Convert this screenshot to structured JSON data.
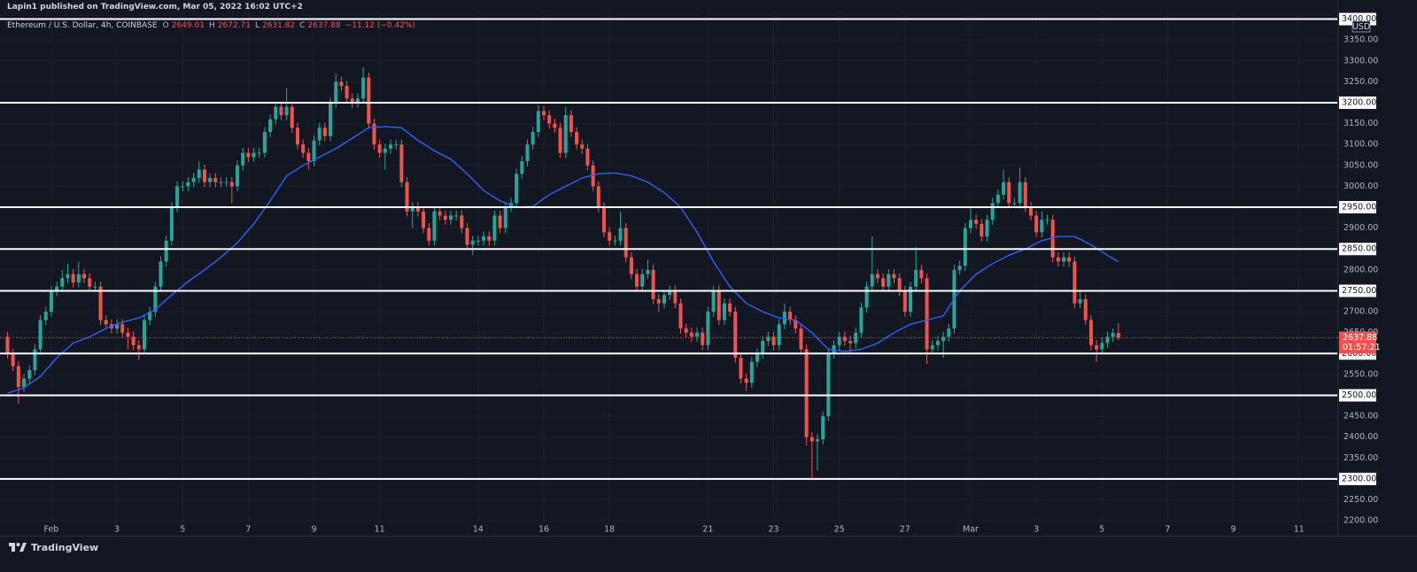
{
  "header": {
    "published": "Lapin1 published on TradingView.com, Mar 05, 2022 16:02 UTC+2"
  },
  "chart_data": {
    "type": "candlestick",
    "symbol": "Ethereum / U.S. Dollar, 4h, COINBASE",
    "ohlc_keys": [
      "O",
      "H",
      "L",
      "C"
    ],
    "change": "−11.12 (−0.42%)",
    "currency": "USD",
    "countdown": "01:57:21",
    "up_color": "#26a69a",
    "down_color": "#ef5350",
    "x": [
      -32,
      -28,
      -24,
      -20,
      -16,
      -12,
      -8,
      -4,
      0,
      4,
      8,
      12,
      16,
      20,
      24,
      28,
      32,
      36,
      40,
      44,
      48,
      52,
      56,
      60,
      64,
      68,
      72,
      76,
      80,
      84,
      88,
      92,
      96,
      100,
      104,
      108,
      112,
      116,
      120,
      124,
      128,
      132,
      136,
      140,
      144,
      148,
      152,
      156,
      160,
      164,
      168,
      172,
      176,
      180,
      184,
      188,
      192,
      196,
      200,
      204,
      208,
      212,
      216,
      220,
      224,
      228,
      232,
      236,
      240,
      244,
      248,
      252,
      256,
      260,
      264,
      268,
      272,
      276,
      280,
      284,
      288,
      292,
      296,
      300,
      304,
      308,
      312,
      316,
      320,
      324,
      328,
      332,
      336,
      340,
      344,
      348,
      352,
      356,
      360,
      364,
      368,
      372,
      376,
      380,
      384,
      388,
      392,
      396,
      400,
      404,
      408,
      412,
      416,
      420,
      424,
      428,
      432,
      436,
      440,
      444,
      448,
      452,
      456,
      460,
      464,
      468,
      472,
      476,
      480,
      484,
      488,
      492,
      496,
      500,
      504,
      508,
      512,
      516,
      520,
      524,
      528,
      532,
      536,
      540,
      544,
      548,
      552,
      556,
      560,
      564,
      568,
      572,
      576,
      580,
      584,
      588,
      592,
      596,
      600,
      604,
      608,
      612,
      616,
      620,
      624,
      628,
      632,
      636,
      640,
      644,
      648,
      652,
      656,
      660,
      664,
      668,
      672,
      676,
      680,
      684,
      688,
      692,
      696,
      700,
      704,
      708,
      712,
      716,
      720,
      724,
      728,
      732,
      736,
      740,
      744,
      748,
      752,
      756,
      760,
      764,
      768,
      772,
      776,
      780
    ],
    "open": [
      2640,
      2600,
      2570,
      2520,
      2540,
      2560,
      2610,
      2680,
      2700,
      2750,
      2760,
      2780,
      2790,
      2770,
      2790,
      2780,
      2760,
      2760,
      2680,
      2670,
      2660,
      2670,
      2650,
      2640,
      2620,
      2610,
      2680,
      2700,
      2760,
      2820,
      2870,
      2950,
      3000,
      3000,
      3010,
      3020,
      3040,
      3010,
      3020,
      3010,
      3010,
      3010,
      3000,
      3050,
      3080,
      3070,
      3080,
      3080,
      3130,
      3160,
      3190,
      3170,
      3190,
      3140,
      3100,
      3080,
      3060,
      3110,
      3140,
      3120,
      3200,
      3250,
      3240,
      3210,
      3200,
      3210,
      3260,
      3150,
      3100,
      3080,
      3090,
      3100,
      3100,
      3010,
      2940,
      2950,
      2940,
      2900,
      2870,
      2940,
      2930,
      2920,
      2930,
      2930,
      2900,
      2860,
      2870,
      2870,
      2880,
      2870,
      2930,
      2900,
      2950,
      2960,
      3030,
      3060,
      3100,
      3130,
      3180,
      3170,
      3150,
      3140,
      3080,
      3170,
      3130,
      3100,
      3090,
      3050,
      3000,
      2950,
      2890,
      2870,
      2870,
      2900,
      2830,
      2790,
      2760,
      2790,
      2800,
      2730,
      2720,
      2740,
      2750,
      2720,
      2660,
      2650,
      2640,
      2650,
      2620,
      2700,
      2750,
      2680,
      2720,
      2700,
      2590,
      2540,
      2530,
      2580,
      2600,
      2630,
      2640,
      2620,
      2670,
      2700,
      2680,
      2660,
      2610,
      2400,
      2390,
      2395,
      2450,
      2600,
      2620,
      2640,
      2630,
      2625,
      2650,
      2710,
      2760,
      2790,
      2780,
      2760,
      2790,
      2780,
      2750,
      2700,
      2760,
      2800,
      2780,
      2610,
      2620,
      2630,
      2640,
      2660,
      2800,
      2810,
      2900,
      2920,
      2910,
      2880,
      2920,
      2960,
      2980,
      3010,
      2960,
      2960,
      3010,
      2950,
      2930,
      2890,
      2920,
      2920,
      2830,
      2820,
      2830,
      2820,
      2720,
      2730,
      2680,
      2620,
      2610,
      2625,
      2640,
      2649.01
    ],
    "high": [
      2652,
      2612,
      2582,
      2552,
      2572,
      2622,
      2692,
      2712,
      2762,
      2772,
      2800,
      2815,
      2802,
      2820,
      2802,
      2792,
      2772,
      2772,
      2692,
      2682,
      2682,
      2682,
      2662,
      2652,
      2632,
      2692,
      2712,
      2772,
      2832,
      2882,
      2962,
      3012,
      3012,
      3022,
      3032,
      3060,
      3052,
      3032,
      3032,
      3022,
      3022,
      3022,
      3062,
      3092,
      3092,
      3092,
      3092,
      3142,
      3172,
      3202,
      3202,
      3235,
      3202,
      3152,
      3112,
      3092,
      3122,
      3152,
      3152,
      3212,
      3270,
      3262,
      3252,
      3222,
      3222,
      3285,
      3272,
      3162,
      3112,
      3102,
      3112,
      3112,
      3112,
      3022,
      2962,
      2962,
      2952,
      2912,
      2952,
      2952,
      2942,
      2942,
      2942,
      2942,
      2912,
      2882,
      2882,
      2892,
      2892,
      2942,
      2942,
      2962,
      2972,
      3042,
      3072,
      3112,
      3142,
      3195,
      3192,
      3182,
      3162,
      3152,
      3190,
      3182,
      3142,
      3112,
      3102,
      3062,
      3012,
      2962,
      2902,
      2882,
      2940,
      2912,
      2842,
      2802,
      2802,
      2825,
      2812,
      2742,
      2752,
      2762,
      2762,
      2732,
      2672,
      2662,
      2662,
      2662,
      2712,
      2762,
      2762,
      2732,
      2732,
      2712,
      2602,
      2552,
      2592,
      2612,
      2642,
      2652,
      2652,
      2682,
      2720,
      2712,
      2692,
      2672,
      2622,
      2412,
      2407,
      2462,
      2612,
      2632,
      2652,
      2652,
      2642,
      2662,
      2722,
      2772,
      2880,
      2802,
      2792,
      2802,
      2802,
      2792,
      2762,
      2772,
      2855,
      2812,
      2792,
      2632,
      2642,
      2652,
      2672,
      2812,
      2822,
      2912,
      2950,
      2932,
      2922,
      2932,
      2972,
      2992,
      3040,
      3022,
      2972,
      3045,
      3022,
      2962,
      2942,
      2940,
      2932,
      2932,
      2842,
      2842,
      2842,
      2832,
      2750,
      2742,
      2692,
      2632,
      2637,
      2652,
      2660,
      2672.71
    ],
    "low": [
      2588,
      2558,
      2480,
      2508,
      2528,
      2548,
      2598,
      2668,
      2688,
      2738,
      2748,
      2768,
      2758,
      2758,
      2768,
      2748,
      2748,
      2668,
      2658,
      2648,
      2648,
      2638,
      2610,
      2608,
      2585,
      2598,
      2668,
      2688,
      2748,
      2808,
      2858,
      2938,
      2988,
      2988,
      2998,
      3008,
      2998,
      2998,
      2998,
      2998,
      2998,
      2960,
      2988,
      3038,
      3058,
      3058,
      3068,
      3068,
      3118,
      3148,
      3158,
      3158,
      3128,
      3088,
      3068,
      3040,
      3048,
      3098,
      3108,
      3108,
      3188,
      3228,
      3198,
      3188,
      3188,
      3198,
      3138,
      3088,
      3068,
      3040,
      3078,
      3088,
      2998,
      2928,
      2900,
      2928,
      2888,
      2858,
      2858,
      2918,
      2908,
      2908,
      2918,
      2888,
      2848,
      2835,
      2858,
      2858,
      2858,
      2858,
      2888,
      2888,
      2938,
      2948,
      3018,
      3048,
      3088,
      3118,
      3158,
      3138,
      3128,
      3068,
      3068,
      3118,
      3088,
      3078,
      3038,
      2988,
      2938,
      2878,
      2858,
      2858,
      2858,
      2818,
      2778,
      2748,
      2748,
      2778,
      2718,
      2700,
      2708,
      2728,
      2708,
      2648,
      2638,
      2628,
      2628,
      2608,
      2608,
      2688,
      2668,
      2668,
      2688,
      2578,
      2528,
      2510,
      2518,
      2568,
      2588,
      2618,
      2608,
      2608,
      2658,
      2668,
      2648,
      2598,
      2380,
      2300,
      2320,
      2383,
      2438,
      2588,
      2608,
      2618,
      2600,
      2613,
      2638,
      2698,
      2748,
      2768,
      2748,
      2748,
      2768,
      2738,
      2688,
      2688,
      2748,
      2768,
      2575,
      2598,
      2608,
      2590,
      2628,
      2648,
      2788,
      2798,
      2888,
      2898,
      2868,
      2868,
      2908,
      2948,
      2968,
      2948,
      2948,
      2948,
      2938,
      2918,
      2878,
      2878,
      2908,
      2818,
      2808,
      2808,
      2808,
      2708,
      2708,
      2668,
      2608,
      2580,
      2598,
      2613,
      2628,
      2631.82
    ],
    "close": [
      2600,
      2570,
      2520,
      2540,
      2560,
      2610,
      2680,
      2700,
      2750,
      2760,
      2780,
      2790,
      2770,
      2790,
      2780,
      2760,
      2760,
      2680,
      2670,
      2660,
      2670,
      2650,
      2640,
      2620,
      2610,
      2680,
      2700,
      2760,
      2820,
      2870,
      2950,
      3000,
      3000,
      3010,
      3020,
      3040,
      3010,
      3020,
      3010,
      3010,
      3010,
      3000,
      3050,
      3080,
      3070,
      3080,
      3080,
      3130,
      3160,
      3190,
      3170,
      3190,
      3140,
      3100,
      3080,
      3060,
      3110,
      3140,
      3120,
      3200,
      3250,
      3240,
      3210,
      3200,
      3210,
      3260,
      3150,
      3100,
      3080,
      3090,
      3100,
      3100,
      3010,
      2940,
      2950,
      2940,
      2900,
      2870,
      2940,
      2930,
      2920,
      2930,
      2930,
      2900,
      2860,
      2870,
      2870,
      2880,
      2870,
      2930,
      2900,
      2950,
      2960,
      3030,
      3060,
      3100,
      3130,
      3180,
      3170,
      3150,
      3140,
      3080,
      3170,
      3130,
      3100,
      3090,
      3050,
      3000,
      2950,
      2890,
      2870,
      2870,
      2900,
      2830,
      2790,
      2760,
      2790,
      2800,
      2730,
      2720,
      2740,
      2750,
      2720,
      2660,
      2650,
      2640,
      2650,
      2620,
      2700,
      2750,
      2680,
      2720,
      2700,
      2590,
      2540,
      2530,
      2580,
      2600,
      2630,
      2640,
      2620,
      2670,
      2700,
      2680,
      2660,
      2610,
      2400,
      2390,
      2395,
      2450,
      2600,
      2620,
      2640,
      2630,
      2625,
      2650,
      2710,
      2760,
      2790,
      2780,
      2760,
      2790,
      2780,
      2750,
      2700,
      2760,
      2800,
      2780,
      2610,
      2620,
      2630,
      2640,
      2660,
      2800,
      2810,
      2900,
      2920,
      2910,
      2880,
      2920,
      2960,
      2980,
      3010,
      2960,
      2960,
      3010,
      2950,
      2930,
      2890,
      2920,
      2920,
      2830,
      2820,
      2830,
      2820,
      2720,
      2730,
      2680,
      2620,
      2610,
      2625,
      2640,
      2649.01,
      2637.88
    ],
    "moving_average": {
      "color": "#2962ff",
      "x": [
        -32,
        -20,
        -8,
        4,
        16,
        28,
        40,
        52,
        64,
        76,
        88,
        100,
        112,
        124,
        136,
        148,
        160,
        172,
        184,
        196,
        208,
        220,
        232,
        244,
        256,
        268,
        280,
        292,
        304,
        316,
        328,
        340,
        352,
        364,
        376,
        388,
        400,
        412,
        424,
        436,
        448,
        460,
        472,
        484,
        496,
        508,
        520,
        532,
        544,
        556,
        568,
        580,
        592,
        604,
        616,
        628,
        640,
        652,
        664,
        676,
        688,
        700,
        712,
        724,
        736,
        748,
        760,
        772,
        780
      ],
      "values": [
        2505,
        2518,
        2545,
        2590,
        2625,
        2640,
        2660,
        2675,
        2685,
        2705,
        2740,
        2772,
        2800,
        2830,
        2865,
        2910,
        2965,
        3025,
        3050,
        3070,
        3090,
        3115,
        3140,
        3143,
        3140,
        3110,
        3085,
        3065,
        3030,
        2990,
        2965,
        2950,
        2952,
        2980,
        3000,
        3020,
        3030,
        3032,
        3025,
        3010,
        2985,
        2950,
        2890,
        2820,
        2760,
        2720,
        2700,
        2685,
        2680,
        2650,
        2610,
        2605,
        2610,
        2625,
        2650,
        2670,
        2680,
        2690,
        2750,
        2790,
        2815,
        2835,
        2850,
        2870,
        2880,
        2880,
        2860,
        2835,
        2820
      ]
    },
    "levels": [
      {
        "value": 3400,
        "label": "3400.00"
      },
      {
        "value": 3200,
        "label": "3200.00"
      },
      {
        "value": 2950,
        "label": "2950.00"
      },
      {
        "value": 2850,
        "label": "2850.00"
      },
      {
        "value": 2750,
        "label": "2750.00"
      },
      {
        "value": 2600,
        "label": "2600.00"
      },
      {
        "value": 2500,
        "label": "2500.00"
      },
      {
        "value": 2300,
        "label": "2300.00"
      }
    ],
    "level_color": "#ffffff",
    "xlim": [
      -37.5,
      940
    ],
    "ylim": [
      2196,
      3416
    ],
    "xticks": [
      {
        "value": 0,
        "label": "Feb"
      },
      {
        "value": 48,
        "label": "3"
      },
      {
        "value": 96,
        "label": "5"
      },
      {
        "value": 144,
        "label": "7"
      },
      {
        "value": 192,
        "label": "9"
      },
      {
        "value": 240,
        "label": "11"
      },
      {
        "value": 312,
        "label": "14"
      },
      {
        "value": 360,
        "label": "16"
      },
      {
        "value": 408,
        "label": "18"
      },
      {
        "value": 480,
        "label": "21"
      },
      {
        "value": 528,
        "label": "23"
      },
      {
        "value": 576,
        "label": "25"
      },
      {
        "value": 624,
        "label": "27"
      },
      {
        "value": 672,
        "label": "Mar"
      },
      {
        "value": 720,
        "label": "3"
      },
      {
        "value": 768,
        "label": "5"
      },
      {
        "value": 816,
        "label": "7"
      },
      {
        "value": 864,
        "label": "9"
      },
      {
        "value": 912,
        "label": "11"
      }
    ],
    "yticks": [
      {
        "value": 2200,
        "label": "2200.00"
      },
      {
        "value": 2250,
        "label": "2250.00"
      },
      {
        "value": 2350,
        "label": "2350.00"
      },
      {
        "value": 2400,
        "label": "2400.00"
      },
      {
        "value": 2450,
        "label": "2450.00"
      },
      {
        "value": 2550,
        "label": "2550.00"
      },
      {
        "value": 2650,
        "label": "2650.00"
      },
      {
        "value": 2700,
        "label": "2700.00"
      },
      {
        "value": 2800,
        "label": "2800.00"
      },
      {
        "value": 2900,
        "label": "2900.00"
      },
      {
        "value": 3000,
        "label": "3000.00"
      },
      {
        "value": 3050,
        "label": "3050.00"
      },
      {
        "value": 3100,
        "label": "3100.00"
      },
      {
        "value": 3150,
        "label": "3150.00"
      },
      {
        "value": 3250,
        "label": "3250.00"
      },
      {
        "value": 3300,
        "label": "3300.00"
      },
      {
        "value": 3350,
        "label": "3350.00"
      }
    ],
    "grid": true
  },
  "footer": {
    "brand": "TradingView"
  }
}
